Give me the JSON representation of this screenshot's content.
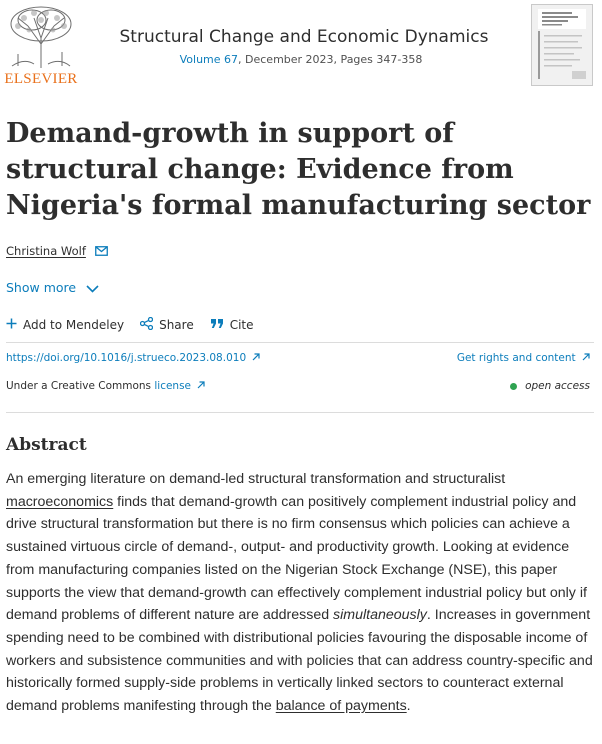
{
  "publisher": {
    "logo_text": "ELSEVIER"
  },
  "journal": {
    "title": "Structural Change and Economic Dynamics",
    "volume_link": "Volume 67",
    "issue_details": ", December 2023, Pages 347-358",
    "cover_alt": "journal-cover"
  },
  "article": {
    "title": "Demand-growth in support of structural change: Evidence from Nigeria's formal manufacturing sector",
    "author": "Christina Wolf",
    "show_more": "Show more"
  },
  "actions": {
    "mendeley": "Add to Mendeley",
    "share": "Share",
    "cite": "Cite"
  },
  "links": {
    "doi": "https://doi.org/10.1016/j.strueco.2023.08.010",
    "rights": "Get rights and content",
    "license_prefix": "Under a Creative Commons ",
    "license_link": "license",
    "open_access": "open access"
  },
  "abstract": {
    "heading": "Abstract",
    "p1": "An emerging literature on demand-led structural transformation and structuralist ",
    "link1": "macroeconomics",
    "p2": " finds that demand-growth can positively complement industrial policy and drive structural transformation but there is no firm consensus which policies can achieve a sustained virtuous circle of demand-, output- and productivity growth. Looking at evidence from manufacturing companies listed on the Nigerian Stock Exchange (NSE), this paper supports the view that demand-growth can effectively complement industrial policy but only if demand problems of different nature are addressed ",
    "emph": "simultaneously",
    "p3": ". Increases in government spending need to be combined with distributional policies favouring the disposable income of workers and subsistence communities and with policies that can address country-specific and historically formed supply-side problems in vertically linked sectors to counteract external demand problems manifesting through the ",
    "link2": "balance of payments",
    "p4": "."
  },
  "colors": {
    "link": "#0c7dbb",
    "brand": "#e9711c",
    "open_access_dot": "#2fa351"
  }
}
